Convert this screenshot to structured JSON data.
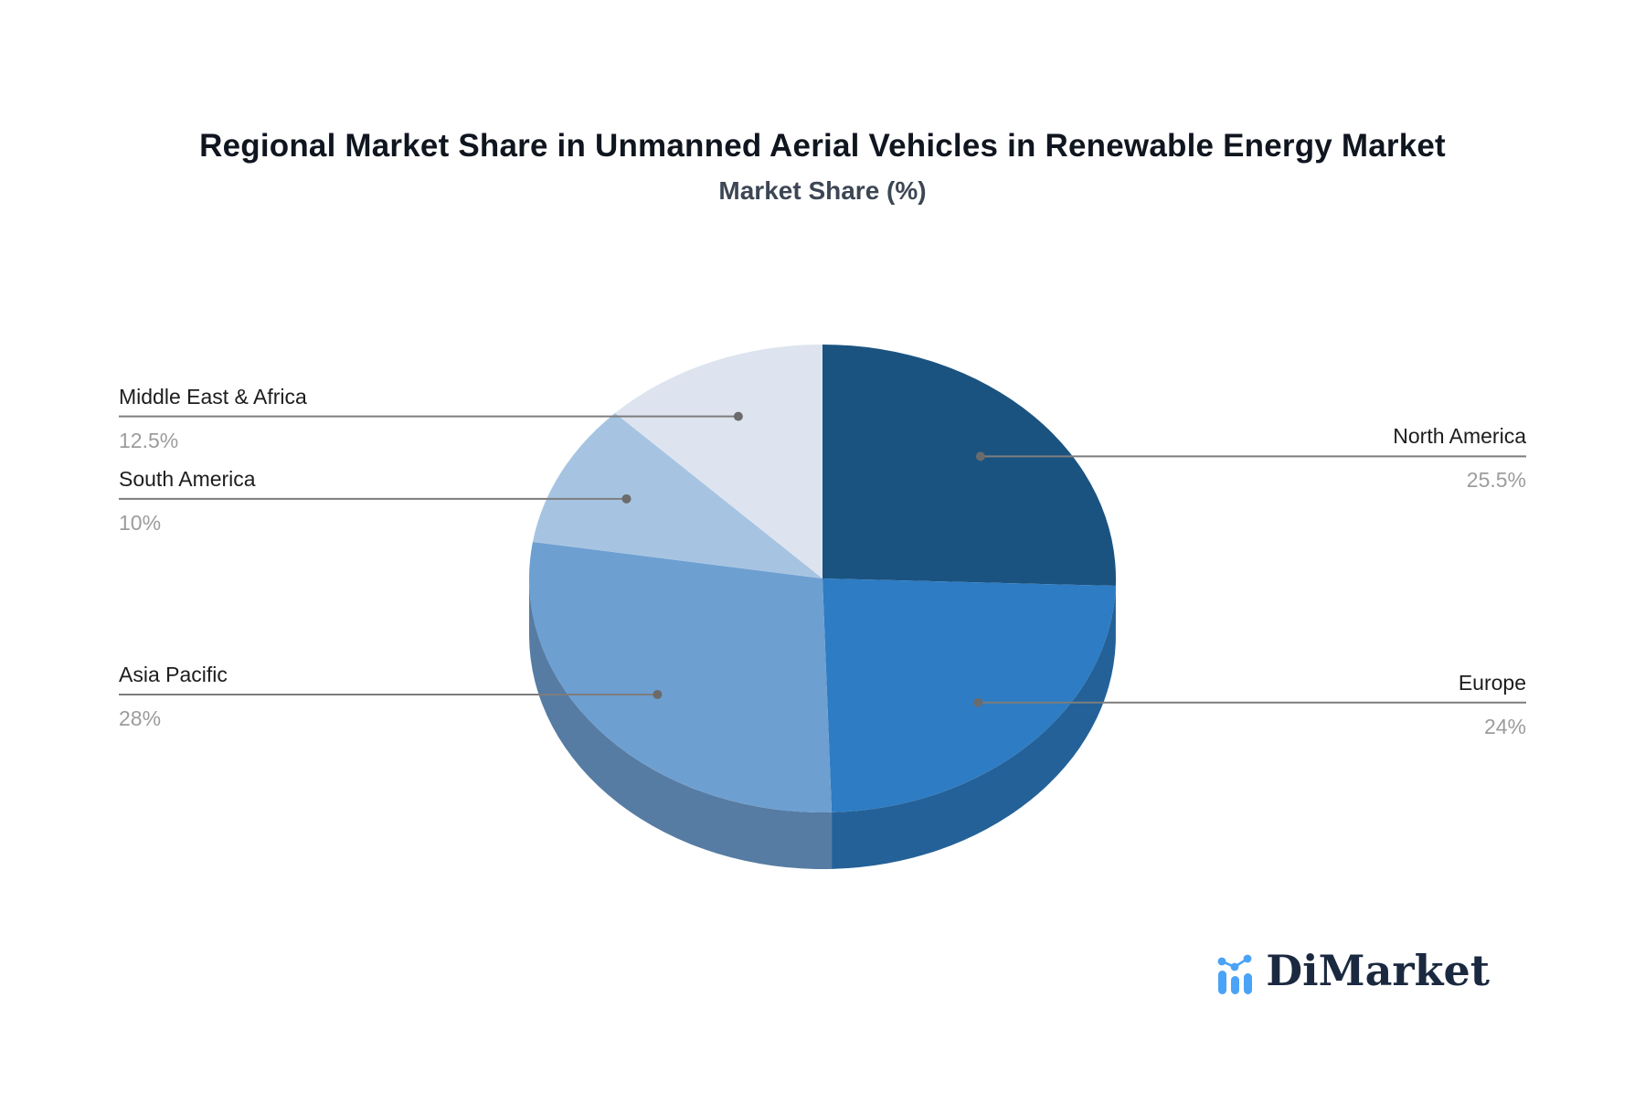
{
  "title": "Regional Market Share in Unmanned Aerial Vehicles in Renewable Energy Market",
  "subtitle": "Market Share (%)",
  "chart_data": {
    "type": "pie",
    "title": "Market Share (%)",
    "unit": "%",
    "start_angle_deg": 0,
    "direction": "clockwise",
    "style_3d": true,
    "segments": [
      {
        "name": "North America",
        "value": 25.5,
        "label": "25.5%",
        "color": "#1b5380"
      },
      {
        "name": "Europe",
        "value": 24,
        "label": "24%",
        "color": "#2e7cc3"
      },
      {
        "name": "Asia Pacific",
        "value": 28,
        "label": "28%",
        "color": "#6e9fd1"
      },
      {
        "name": "South America",
        "value": 10,
        "label": "10%",
        "color": "#a6c4e2"
      },
      {
        "name": "Middle East & Africa",
        "value": 12.5,
        "label": "12.5%",
        "color": "#dde4ef"
      }
    ]
  },
  "logo": {
    "text": "DiMarket",
    "icon": "bar-line-chart-icon",
    "accent_color": "#4aa3f7",
    "text_color": "#1b2940"
  },
  "style": {
    "leader_line_color": "#7d7d7d",
    "leader_dot_color": "#6b6b6b",
    "name_color": "#1d1d1d",
    "percent_color": "#9c9c9c"
  }
}
